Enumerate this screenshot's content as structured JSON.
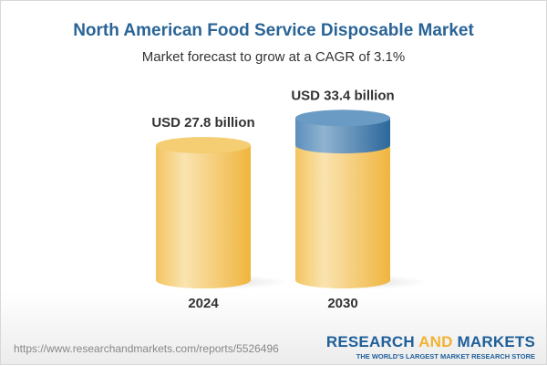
{
  "title": "North American Food Service Disposable Market",
  "subtitle": "Market forecast to grow at a CAGR of 3.1%",
  "chart_data": {
    "type": "bar",
    "style": "3d-cylinder",
    "categories": [
      "2024",
      "2030"
    ],
    "values": [
      27.8,
      33.4
    ],
    "data_labels": [
      "USD 27.8 billion",
      "USD 33.4 billion"
    ],
    "unit": "USD billion",
    "cagr": "3.1%",
    "colors": {
      "base": "#f2c45a",
      "growth": "#3f78a8"
    }
  },
  "footer": {
    "url": "https://www.researchandmarkets.com/reports/5526496",
    "logo_part1": "RESEARCH ",
    "logo_part2": "AND",
    "logo_part3": " MARKETS",
    "tagline": "THE WORLD'S LARGEST MARKET RESEARCH STORE"
  }
}
